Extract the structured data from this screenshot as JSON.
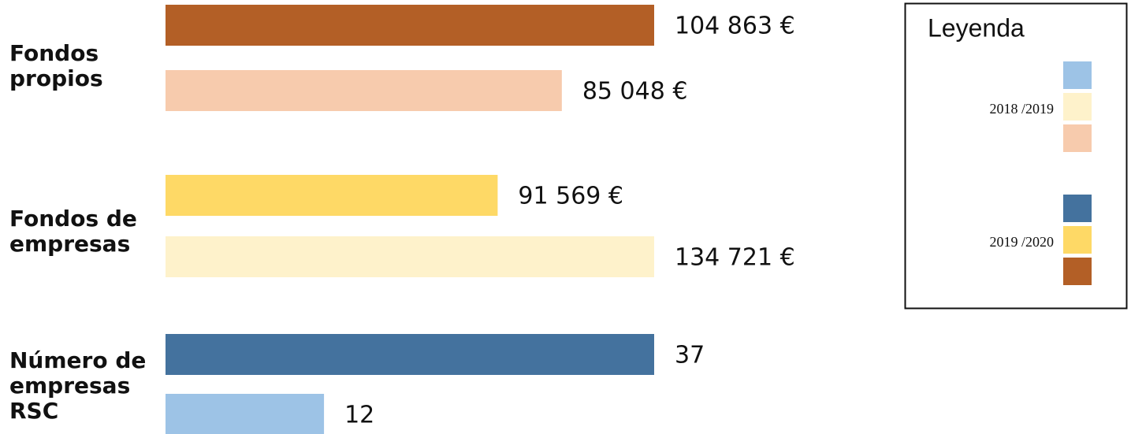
{
  "chart_data": {
    "type": "bar",
    "orientation": "horizontal",
    "categories": [
      "Fondos propios",
      "Fondos de empresas",
      "Número de empresas RSC"
    ],
    "series": [
      {
        "name": "2019 /2020",
        "colors": [
          "#b35f26",
          "#fed966",
          "#44729e"
        ],
        "values": [
          104863,
          91569,
          37
        ],
        "value_labels": [
          "104 863 €",
          "91 569 €",
          "37"
        ]
      },
      {
        "name": "2018 /2019",
        "colors": [
          "#f7cbad",
          "#fef2cb",
          "#9dc3e6"
        ],
        "values": [
          85048,
          134721,
          12
        ],
        "value_labels": [
          "85 048 €",
          "134 721 €",
          "12"
        ]
      }
    ],
    "legend_title": "Leyenda"
  }
}
